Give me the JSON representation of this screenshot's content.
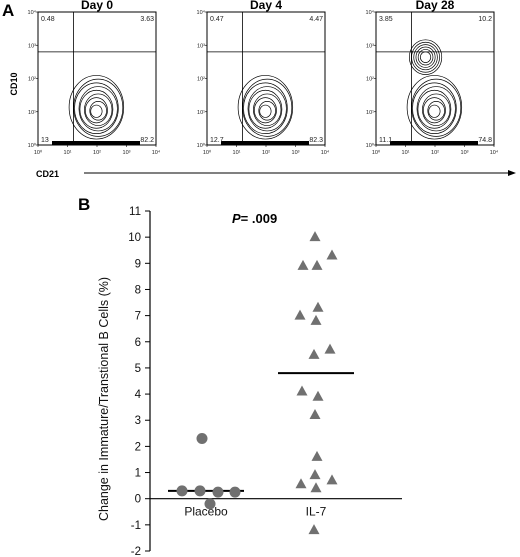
{
  "panel_a": {
    "letter": "A",
    "y_axis_label": "CD10",
    "x_axis_label": "CD21",
    "tick_labels": [
      "10⁰",
      "10¹",
      "10²",
      "10³",
      "10⁴"
    ],
    "plots": [
      {
        "title": "Day 0",
        "quadrants": {
          "ul": "0.48",
          "ur": "3.63",
          "ll": "13",
          "lr": "82.2"
        }
      },
      {
        "title": "Day 4",
        "quadrants": {
          "ul": "0.47",
          "ur": "4.47",
          "ll": "12.7",
          "lr": "82.3"
        }
      },
      {
        "title": "Day 28",
        "quadrants": {
          "ul": "3.85",
          "ur": "10.2",
          "ll": "11.1",
          "lr": "74.8"
        }
      }
    ]
  },
  "panel_b": {
    "letter": "B",
    "p_label": "P",
    "p_value": "= .009"
  },
  "chart_data": {
    "type": "scatter",
    "title": "",
    "xlabel": "",
    "ylabel": "Change in Immature/Transtional B Cells (%)",
    "categories": [
      "Placebo",
      "IL-7"
    ],
    "ylim": [
      -2,
      11
    ],
    "yticks": [
      "-2",
      "-1",
      "0",
      "1",
      "2",
      "3",
      "4",
      "5",
      "6",
      "7",
      "8",
      "9",
      "10",
      "11"
    ],
    "series": [
      {
        "category": "Placebo",
        "marker": "circle",
        "color": "#707070",
        "values": [
          2.3,
          0.3,
          0.3,
          0.25,
          0.25,
          -0.2
        ],
        "median": 0.3
      },
      {
        "category": "IL-7",
        "marker": "triangle",
        "color": "#707070",
        "values": [
          10.0,
          9.3,
          8.9,
          8.9,
          7.3,
          7.0,
          6.8,
          5.7,
          5.5,
          4.1,
          3.9,
          3.2,
          1.6,
          0.9,
          0.7,
          0.55,
          0.4,
          -1.2
        ],
        "median": 4.8
      }
    ]
  }
}
